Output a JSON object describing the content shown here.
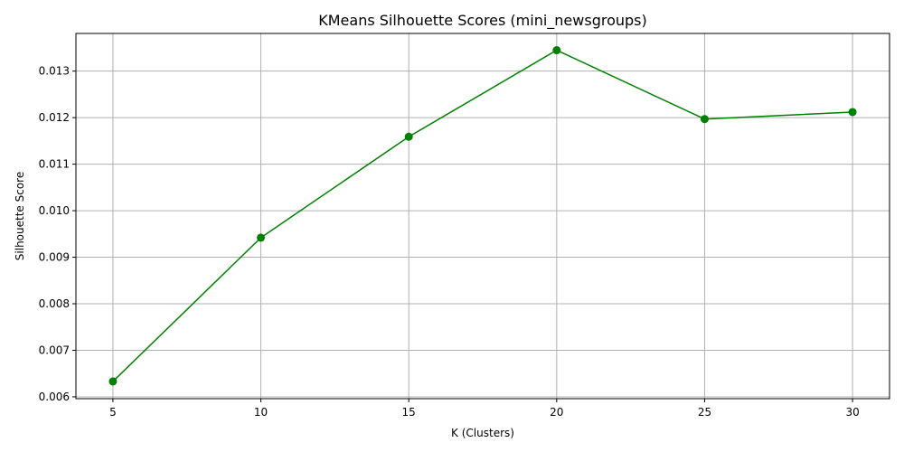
{
  "chart_data": {
    "type": "line",
    "title": "KMeans Silhouette Scores (mini_newsgroups)",
    "xlabel": "K (Clusters)",
    "ylabel": "Silhouette Score",
    "x": [
      5,
      10,
      15,
      20,
      25,
      30
    ],
    "series": [
      {
        "values": [
          0.00633,
          0.00942,
          0.01159,
          0.01345,
          0.01197,
          0.01212
        ]
      }
    ],
    "xlim": [
      3.75,
      31.25
    ],
    "ylim": [
      0.00596,
      0.01381
    ],
    "xticks": [
      5,
      10,
      15,
      20,
      25,
      30
    ],
    "xtick_labels": [
      "5",
      "10",
      "15",
      "20",
      "25",
      "30"
    ],
    "yticks": [
      0.006,
      0.007,
      0.008,
      0.009,
      0.01,
      0.011,
      0.012,
      0.013
    ],
    "ytick_labels": [
      "0.006",
      "0.007",
      "0.008",
      "0.009",
      "0.010",
      "0.011",
      "0.012",
      "0.013"
    ],
    "grid": true,
    "marker": "circle",
    "line_color": "#008000",
    "grid_color": "#b0b0b0"
  }
}
